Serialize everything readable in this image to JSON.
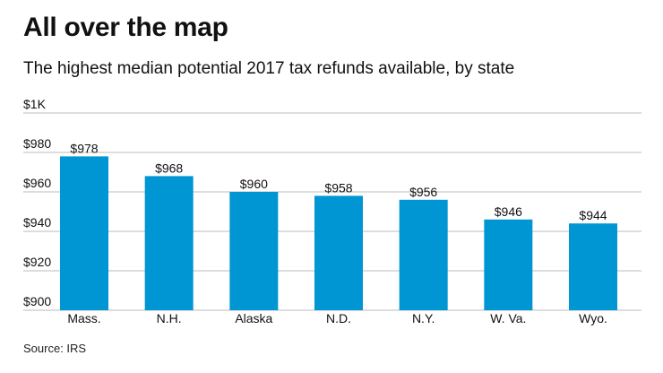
{
  "header": {
    "title": "All over the map",
    "subtitle": "The highest median potential 2017 tax refunds available, by state"
  },
  "footer": {
    "source": "Source: IRS"
  },
  "colors": {
    "bar": "#0095D3",
    "grid": "#BBBBBB",
    "text": "#111111"
  },
  "chart_data": {
    "type": "bar",
    "title": "All over the map",
    "subtitle": "The highest median potential 2017 tax refunds available, by state",
    "categories": [
      "Mass.",
      "N.H.",
      "Alaska",
      "N.D.",
      "N.Y.",
      "W. Va.",
      "Wyo."
    ],
    "values": [
      978,
      968,
      960,
      958,
      956,
      946,
      944
    ],
    "data_labels": [
      "$978",
      "$968",
      "$960",
      "$958",
      "$956",
      "$946",
      "$944"
    ],
    "xlabel": "",
    "ylabel": "",
    "ylim": [
      900,
      1000
    ],
    "yticks": [
      900,
      920,
      940,
      960,
      980,
      1000
    ],
    "ytick_labels": [
      "$900",
      "$920",
      "$940",
      "$960",
      "$980",
      "$1K"
    ],
    "grid": true,
    "legend": false,
    "source": "Source: IRS"
  }
}
